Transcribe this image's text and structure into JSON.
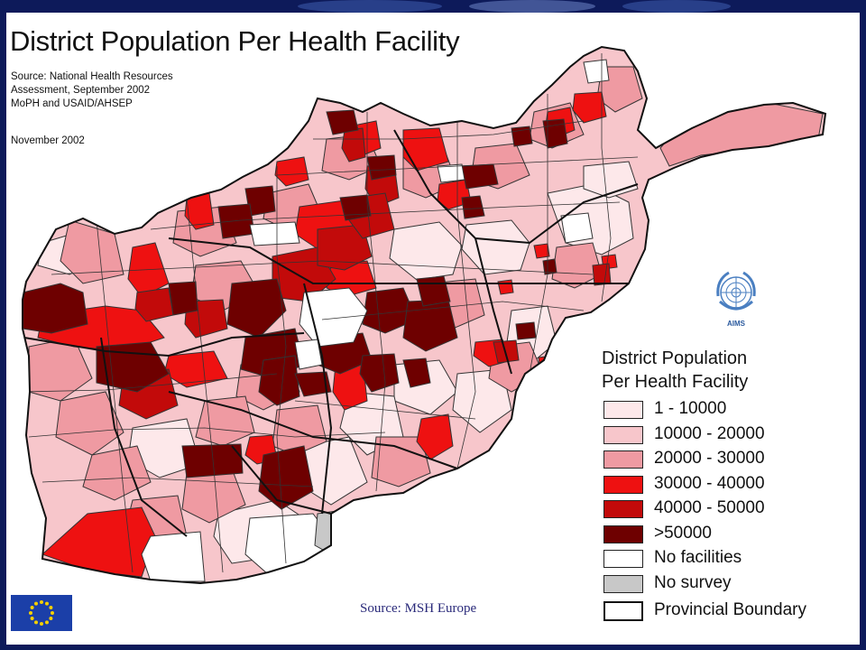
{
  "title": "District Population Per Health Facility",
  "source_notes": [
    "Source: National Health Resources",
    "Assessment, September 2002",
    "MoPH and USAID/AHSEP"
  ],
  "date_note": "November 2002",
  "map_source": "Source: MSH Europe",
  "un_logo_label": "AIMS",
  "legend": {
    "title_lines": [
      "District Population",
      "Per Health Facility"
    ],
    "items": [
      {
        "label": "1 - 10000",
        "color": "#fde8ea"
      },
      {
        "label": "10000 - 20000",
        "color": "#f7c6cb"
      },
      {
        "label": "20000 - 30000",
        "color": "#ef9aa2"
      },
      {
        "label": "30000 - 40000",
        "color": "#ee1111"
      },
      {
        "label": "40000 - 50000",
        "color": "#c20a0a"
      },
      {
        "label": ">50000",
        "color": "#6e0000"
      },
      {
        "label": "No facilities",
        "color": "#ffffff"
      },
      {
        "label": "No survey",
        "color": "#c8c8c8"
      },
      {
        "label": "Provincial Boundary",
        "color": "#ffffff"
      }
    ]
  },
  "colors": {
    "background": "#0d1a5a",
    "panel": "#ffffff",
    "base_district": "#f7c6cb",
    "district_outline": "#333333",
    "eu_blue": "#1b3fa8",
    "eu_star": "#f5d000",
    "un_blue": "#4a7fc1"
  }
}
